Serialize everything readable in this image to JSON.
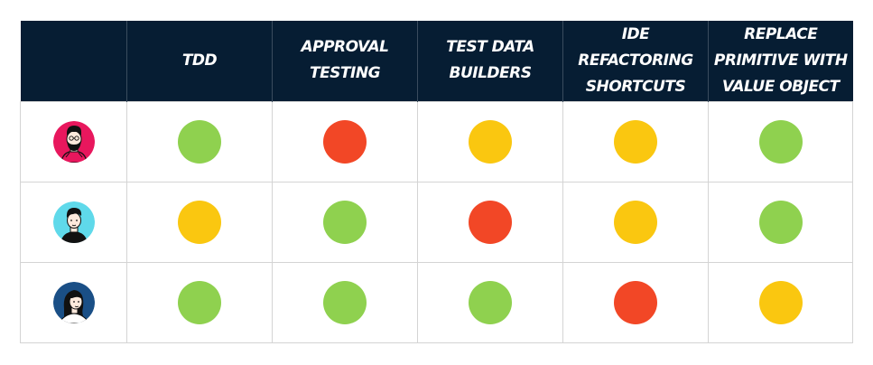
{
  "colors": {
    "header_bg": "#061d33",
    "green": "#8fd14f",
    "yellow": "#fac710",
    "red": "#f24726"
  },
  "columns": [
    "TDD",
    "APPROVAL TESTING",
    "TEST DATA BUILDERS",
    "IDE REFACTORING SHORTCUTS",
    "REPLACE PRIMITIVE WITH VALUE OBJECT"
  ],
  "rows": [
    {
      "avatar": {
        "icon": "bearded-man-avatar-icon",
        "bg": "#e8175d"
      },
      "ratings": [
        "green",
        "red",
        "yellow",
        "yellow",
        "green"
      ]
    },
    {
      "avatar": {
        "icon": "man-avatar-icon",
        "bg": "#5fd9ea"
      },
      "ratings": [
        "yellow",
        "green",
        "red",
        "yellow",
        "green"
      ]
    },
    {
      "avatar": {
        "icon": "woman-avatar-icon",
        "bg": "#1a4f86"
      },
      "ratings": [
        "green",
        "green",
        "green",
        "red",
        "yellow"
      ]
    }
  ]
}
